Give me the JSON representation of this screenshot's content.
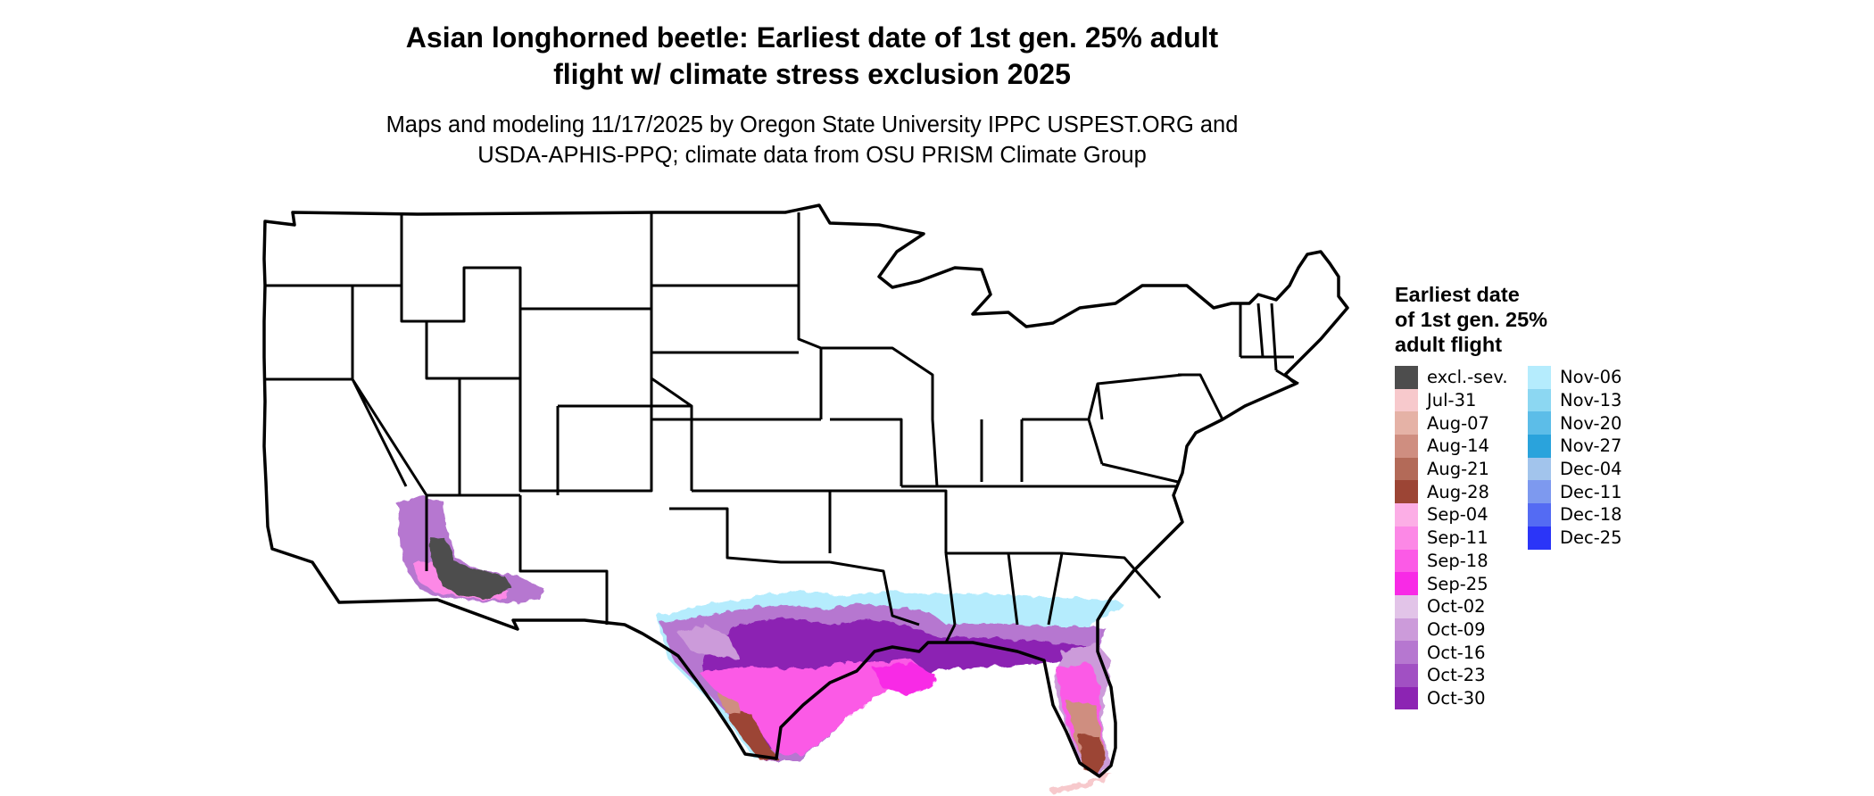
{
  "title": {
    "line1": "Asian longhorned beetle: Earliest date of 1st gen. 25% adult",
    "line2": "flight w/ climate stress exclusion 2025"
  },
  "subtitle": {
    "line1": "Maps and modeling 11/17/2025 by Oregon State University IPPC USPEST.ORG and",
    "line2": "USDA-APHIS-PPQ; climate data from OSU PRISM Climate Group"
  },
  "legend": {
    "title_lines": [
      "Earliest date",
      "of 1st gen. 25%",
      "adult flight"
    ],
    "columns": [
      [
        {
          "label": "excl.-sev.",
          "color": "#4d4d4d"
        },
        {
          "label": "Jul-31",
          "color": "#f7c9cc"
        },
        {
          "label": "Aug-07",
          "color": "#e5b2a6"
        },
        {
          "label": "Aug-14",
          "color": "#cf8e80"
        },
        {
          "label": "Aug-21",
          "color": "#b36a58"
        },
        {
          "label": "Aug-28",
          "color": "#9c4535"
        },
        {
          "label": "Sep-04",
          "color": "#fcaee6"
        },
        {
          "label": "Sep-11",
          "color": "#fc88e6"
        },
        {
          "label": "Sep-18",
          "color": "#fb5ae6"
        },
        {
          "label": "Sep-25",
          "color": "#f82ae6"
        },
        {
          "label": "Oct-02",
          "color": "#e2c4e8"
        },
        {
          "label": "Oct-09",
          "color": "#cc9bda"
        },
        {
          "label": "Oct-16",
          "color": "#b677d0"
        },
        {
          "label": "Oct-23",
          "color": "#a150c3"
        },
        {
          "label": "Oct-30",
          "color": "#8c24b3"
        }
      ],
      [
        {
          "label": "Nov-06",
          "color": "#b5ecfd"
        },
        {
          "label": "Nov-13",
          "color": "#8cd7f2"
        },
        {
          "label": "Nov-20",
          "color": "#5cbde8"
        },
        {
          "label": "Nov-27",
          "color": "#2aa3dc"
        },
        {
          "label": "Dec-04",
          "color": "#a2c4ec"
        },
        {
          "label": "Dec-11",
          "color": "#7d99ef"
        },
        {
          "label": "Dec-18",
          "color": "#546bf3"
        },
        {
          "label": "Dec-25",
          "color": "#2b35f8"
        }
      ]
    ]
  }
}
